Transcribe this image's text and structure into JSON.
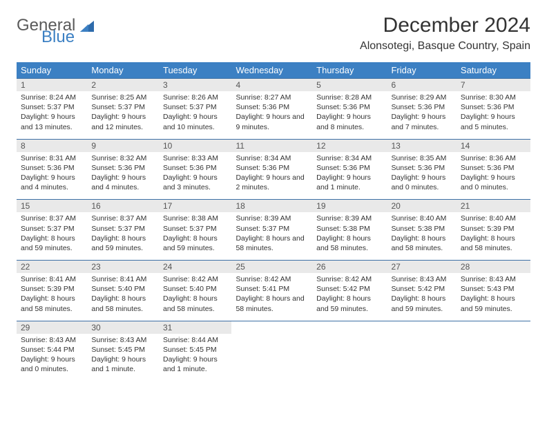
{
  "brand": {
    "general": "General",
    "blue": "Blue"
  },
  "title": "December 2024",
  "location": "Alonsotegi, Basque Country, Spain",
  "colors": {
    "header_bg": "#3c80c3",
    "header_text": "#ffffff",
    "daynum_bg": "#e9e9e9",
    "border": "#3c6fa5",
    "brand_blue": "#3c80c3",
    "brand_gray": "#5a5a5a"
  },
  "dayNames": [
    "Sunday",
    "Monday",
    "Tuesday",
    "Wednesday",
    "Thursday",
    "Friday",
    "Saturday"
  ],
  "weeks": [
    [
      {
        "n": "1",
        "sr": "8:24 AM",
        "ss": "5:37 PM",
        "dl": "9 hours and 13 minutes."
      },
      {
        "n": "2",
        "sr": "8:25 AM",
        "ss": "5:37 PM",
        "dl": "9 hours and 12 minutes."
      },
      {
        "n": "3",
        "sr": "8:26 AM",
        "ss": "5:37 PM",
        "dl": "9 hours and 10 minutes."
      },
      {
        "n": "4",
        "sr": "8:27 AM",
        "ss": "5:36 PM",
        "dl": "9 hours and 9 minutes."
      },
      {
        "n": "5",
        "sr": "8:28 AM",
        "ss": "5:36 PM",
        "dl": "9 hours and 8 minutes."
      },
      {
        "n": "6",
        "sr": "8:29 AM",
        "ss": "5:36 PM",
        "dl": "9 hours and 7 minutes."
      },
      {
        "n": "7",
        "sr": "8:30 AM",
        "ss": "5:36 PM",
        "dl": "9 hours and 5 minutes."
      }
    ],
    [
      {
        "n": "8",
        "sr": "8:31 AM",
        "ss": "5:36 PM",
        "dl": "9 hours and 4 minutes."
      },
      {
        "n": "9",
        "sr": "8:32 AM",
        "ss": "5:36 PM",
        "dl": "9 hours and 4 minutes."
      },
      {
        "n": "10",
        "sr": "8:33 AM",
        "ss": "5:36 PM",
        "dl": "9 hours and 3 minutes."
      },
      {
        "n": "11",
        "sr": "8:34 AM",
        "ss": "5:36 PM",
        "dl": "9 hours and 2 minutes."
      },
      {
        "n": "12",
        "sr": "8:34 AM",
        "ss": "5:36 PM",
        "dl": "9 hours and 1 minute."
      },
      {
        "n": "13",
        "sr": "8:35 AM",
        "ss": "5:36 PM",
        "dl": "9 hours and 0 minutes."
      },
      {
        "n": "14",
        "sr": "8:36 AM",
        "ss": "5:36 PM",
        "dl": "9 hours and 0 minutes."
      }
    ],
    [
      {
        "n": "15",
        "sr": "8:37 AM",
        "ss": "5:37 PM",
        "dl": "8 hours and 59 minutes."
      },
      {
        "n": "16",
        "sr": "8:37 AM",
        "ss": "5:37 PM",
        "dl": "8 hours and 59 minutes."
      },
      {
        "n": "17",
        "sr": "8:38 AM",
        "ss": "5:37 PM",
        "dl": "8 hours and 59 minutes."
      },
      {
        "n": "18",
        "sr": "8:39 AM",
        "ss": "5:37 PM",
        "dl": "8 hours and 58 minutes."
      },
      {
        "n": "19",
        "sr": "8:39 AM",
        "ss": "5:38 PM",
        "dl": "8 hours and 58 minutes."
      },
      {
        "n": "20",
        "sr": "8:40 AM",
        "ss": "5:38 PM",
        "dl": "8 hours and 58 minutes."
      },
      {
        "n": "21",
        "sr": "8:40 AM",
        "ss": "5:39 PM",
        "dl": "8 hours and 58 minutes."
      }
    ],
    [
      {
        "n": "22",
        "sr": "8:41 AM",
        "ss": "5:39 PM",
        "dl": "8 hours and 58 minutes."
      },
      {
        "n": "23",
        "sr": "8:41 AM",
        "ss": "5:40 PM",
        "dl": "8 hours and 58 minutes."
      },
      {
        "n": "24",
        "sr": "8:42 AM",
        "ss": "5:40 PM",
        "dl": "8 hours and 58 minutes."
      },
      {
        "n": "25",
        "sr": "8:42 AM",
        "ss": "5:41 PM",
        "dl": "8 hours and 58 minutes."
      },
      {
        "n": "26",
        "sr": "8:42 AM",
        "ss": "5:42 PM",
        "dl": "8 hours and 59 minutes."
      },
      {
        "n": "27",
        "sr": "8:43 AM",
        "ss": "5:42 PM",
        "dl": "8 hours and 59 minutes."
      },
      {
        "n": "28",
        "sr": "8:43 AM",
        "ss": "5:43 PM",
        "dl": "8 hours and 59 minutes."
      }
    ],
    [
      {
        "n": "29",
        "sr": "8:43 AM",
        "ss": "5:44 PM",
        "dl": "9 hours and 0 minutes."
      },
      {
        "n": "30",
        "sr": "8:43 AM",
        "ss": "5:45 PM",
        "dl": "9 hours and 1 minute."
      },
      {
        "n": "31",
        "sr": "8:44 AM",
        "ss": "5:45 PM",
        "dl": "9 hours and 1 minute."
      },
      null,
      null,
      null,
      null
    ]
  ],
  "labels": {
    "sunrise": "Sunrise:",
    "sunset": "Sunset:",
    "daylight": "Daylight:"
  }
}
